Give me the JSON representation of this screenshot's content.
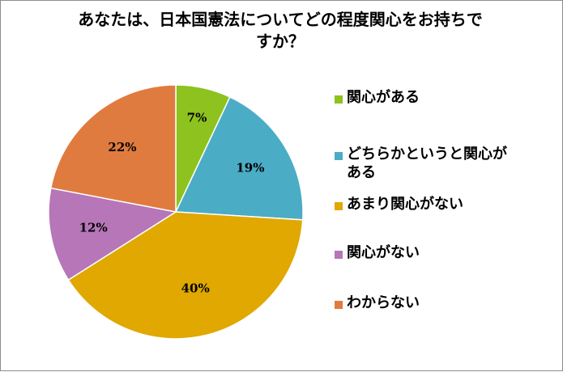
{
  "chart_data": {
    "type": "pie",
    "title": "あなたは、日本国憲法についてどの程度関心をお持ちですか？",
    "title_lines": [
      "あなたは、日本国憲法についてどの程度関心をお持ちで",
      "すか？"
    ],
    "categories": [
      "関心がある",
      "どちらかというと関心がある",
      "あまり関心がない",
      "関心がない",
      "わからない"
    ],
    "values": [
      7,
      19,
      40,
      12,
      22
    ],
    "value_labels": [
      "7%",
      "19%",
      "40%",
      "12%",
      "22%"
    ],
    "colors": [
      "#8dc21f",
      "#4bacc6",
      "#e0a800",
      "#b676b8",
      "#e07b3f"
    ],
    "start_angle": "12 o'clock, clockwise",
    "legend_position": "right"
  },
  "legend": {
    "items": [
      {
        "label": "関心がある",
        "color": "#8dc21f"
      },
      {
        "label": "どちらかというと関心が\nある",
        "color": "#4bacc6"
      },
      {
        "label": "あまり関心がない",
        "color": "#e0a800"
      },
      {
        "label": "関心がない",
        "color": "#b676b8"
      },
      {
        "label": "わからない",
        "color": "#e07b3f"
      }
    ]
  }
}
